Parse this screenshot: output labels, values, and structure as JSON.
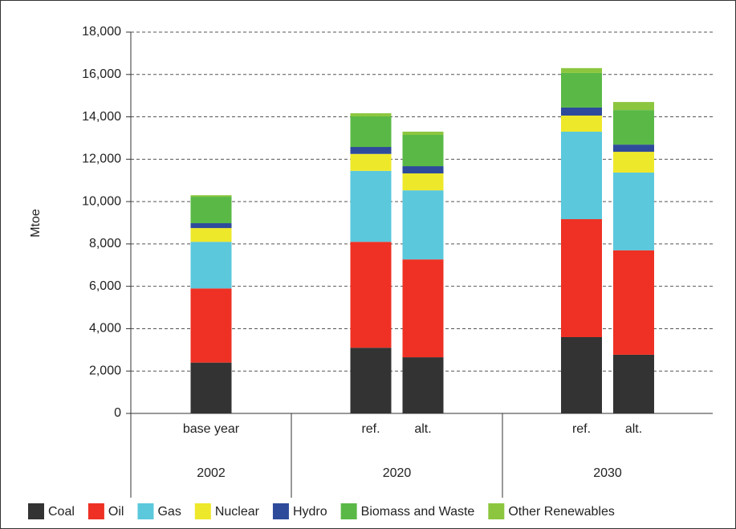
{
  "chart_data": {
    "type": "stacked-bar",
    "y_label": "Mtoe",
    "groups": [
      {
        "name": "2002",
        "categories": [
          "base year"
        ]
      },
      {
        "name": "2020",
        "categories": [
          "ref.",
          "alt."
        ]
      },
      {
        "name": "2030",
        "categories": [
          "ref.",
          "alt."
        ]
      }
    ],
    "series": [
      {
        "name": "Coal",
        "color": "#333333",
        "values": [
          2400,
          3100,
          2650,
          3600,
          2770
        ]
      },
      {
        "name": "Oil",
        "color": "#ee3124",
        "values": [
          3500,
          5000,
          4620,
          5570,
          4930
        ]
      },
      {
        "name": "Gas",
        "color": "#5bc8dc",
        "values": [
          2200,
          3350,
          3260,
          4130,
          3670
        ]
      },
      {
        "name": "Nuclear",
        "color": "#eee82a",
        "values": [
          650,
          800,
          800,
          760,
          980
        ]
      },
      {
        "name": "Hydro",
        "color": "#2e4b9b",
        "values": [
          230,
          330,
          340,
          380,
          340
        ]
      },
      {
        "name": "Biomass and Waste",
        "color": "#5ab946",
        "values": [
          1250,
          1440,
          1480,
          1630,
          1630
        ]
      },
      {
        "name": "Other Renewables",
        "color": "#8cc63f",
        "values": [
          70,
          150,
          150,
          230,
          380
        ]
      }
    ],
    "ylim": [
      0,
      18000
    ],
    "yticks": [
      0,
      {
        "value": 2000,
        "label": "2,000"
      },
      {
        "value": 4000,
        "label": "4,000"
      },
      {
        "value": 6000,
        "label": "6,000"
      },
      {
        "value": 8000,
        "label": "8,000"
      },
      {
        "value": 10000,
        "label": "10,000"
      },
      {
        "value": 12000,
        "label": "12,000"
      },
      {
        "value": 14000,
        "label": "14,000"
      },
      {
        "value": 16000,
        "label": "16,000"
      },
      {
        "value": 18000,
        "label": "18,000"
      }
    ],
    "grid": true,
    "legend": "bottom"
  }
}
